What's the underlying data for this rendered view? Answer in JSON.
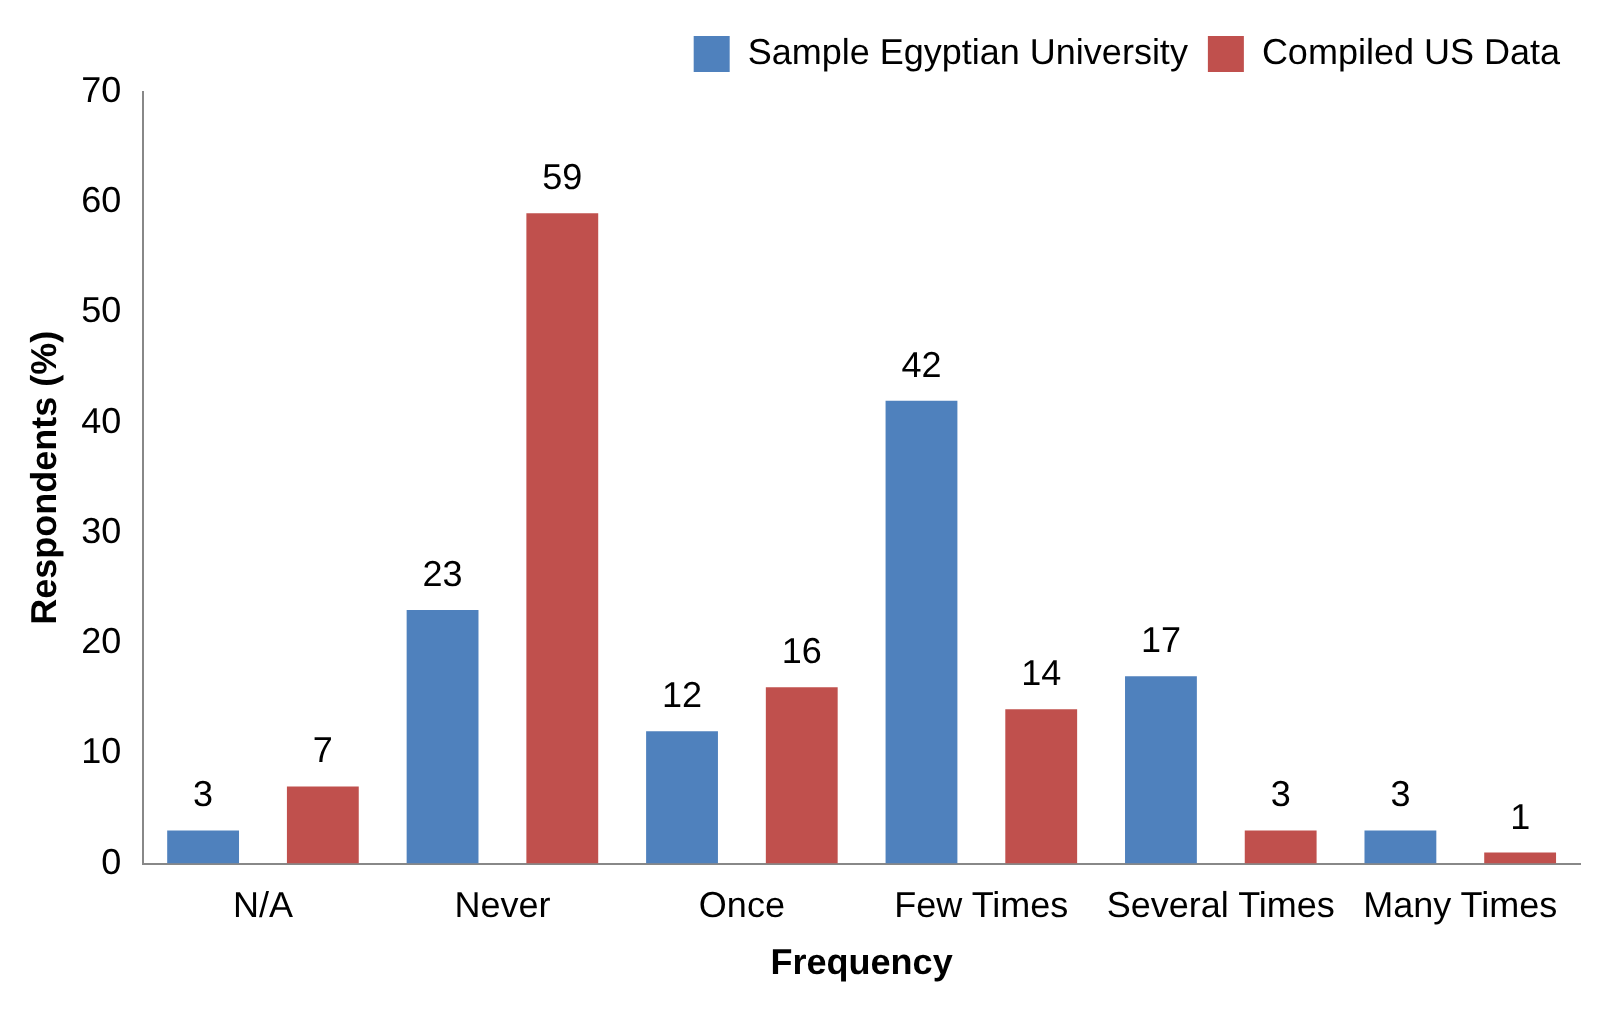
{
  "chart_data": {
    "type": "bar",
    "xlabel": "Frequency",
    "ylabel": "Respondents (%)",
    "categories": [
      "N/A",
      "Never",
      "Once",
      "Few Times",
      "Several Times",
      "Many Times"
    ],
    "series": [
      {
        "name": "Sample Egyptian University",
        "color": "#4f81bd",
        "values": [
          3,
          23,
          12,
          42,
          17,
          3
        ]
      },
      {
        "name": "Compiled US Data",
        "color": "#c0504d",
        "values": [
          7,
          59,
          16,
          14,
          3,
          1
        ]
      }
    ],
    "ylim": [
      0,
      70
    ],
    "yticks": [
      0,
      10,
      20,
      30,
      40,
      50,
      60,
      70
    ],
    "grid": false,
    "legend": "top right",
    "data_labels": true
  }
}
